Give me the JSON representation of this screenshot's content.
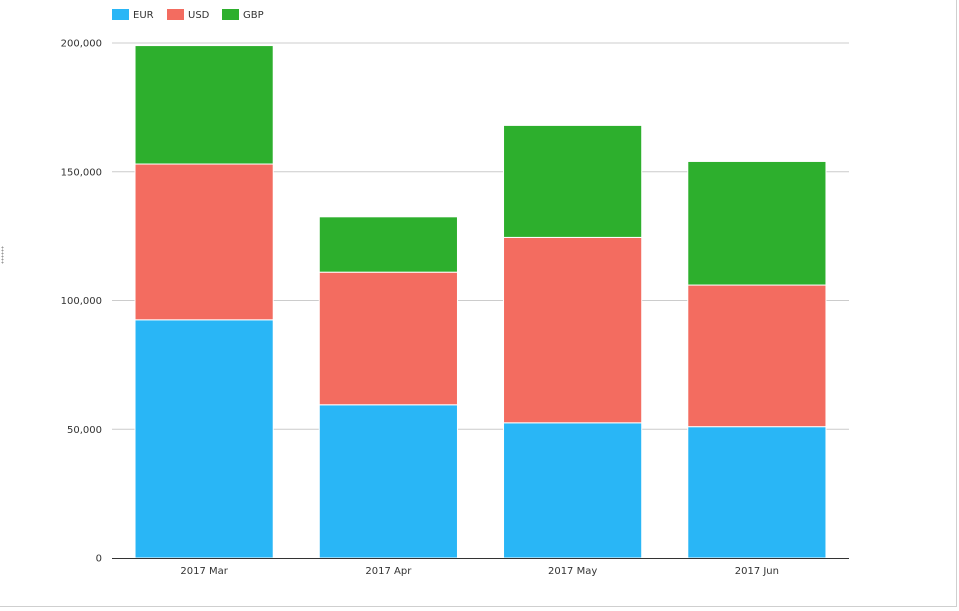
{
  "chart_data": {
    "type": "bar",
    "stacked": true,
    "categories": [
      "2017 Mar",
      "2017 Apr",
      "2017 May",
      "2017 Jun"
    ],
    "series": [
      {
        "name": "EUR",
        "color": "#29b6f6",
        "values": [
          92500,
          59500,
          52500,
          51000
        ]
      },
      {
        "name": "USD",
        "color": "#f36c60",
        "values": [
          60500,
          51500,
          72000,
          55000
        ]
      },
      {
        "name": "GBP",
        "color": "#2daf2d",
        "values": [
          46000,
          21500,
          43500,
          48000
        ]
      }
    ],
    "ylim": [
      0,
      200000
    ],
    "yticks": [
      0,
      50000,
      100000,
      150000,
      200000
    ],
    "ytick_labels": [
      "0",
      "50,000",
      "100,000",
      "150,000",
      "200,000"
    ],
    "legend_position": "top-left",
    "grid": true,
    "title": "",
    "xlabel": "",
    "ylabel": ""
  }
}
